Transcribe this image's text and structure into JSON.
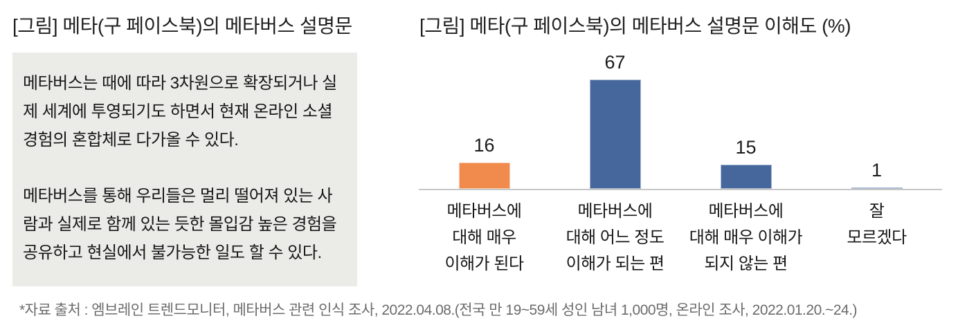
{
  "left_panel": {
    "title": "[그림] 메타(구 페이스북)의 메타버스 설명문",
    "description_paragraphs": [
      "메타버스는 때에 따라 3차원으로 확장되거나 실제 세계에 투영되기도 하면서 현재 온라인 소셜 경험의 혼합체로 다가올 수 있다.",
      "메타버스를 통해 우리들은 멀리 떨어져 있는 사람과 실제로 함께 있는 듯한 몰입감 높은 경험을 공유하고 현실에서 불가능한 일도 할 수 있다."
    ],
    "box_background": "#EBEBE8"
  },
  "chart_data": {
    "type": "bar",
    "title": "[그림] 메타(구 페이스북)의 메타버스 설명문 이해도 (%)",
    "categories": [
      "메타버스에 대해 매우 이해가 된다",
      "메타버스에 대해 어느 정도 이해가 되는 편",
      "메타버스에 대해 매우 이해가 되지 않는 편",
      "잘 모르겠다"
    ],
    "category_lines": [
      [
        "메타버스에",
        "대해 매우",
        "이해가 된다"
      ],
      [
        "메타버스에",
        "대해 어느 정도",
        "이해가 되는 편"
      ],
      [
        "메타버스에",
        "대해 매우 이해가",
        "되지 않는 편"
      ],
      [
        "잘",
        "모르겠다"
      ]
    ],
    "values": [
      16,
      67,
      15,
      1
    ],
    "data_labels": [
      "16",
      "67",
      "15",
      "1"
    ],
    "unit": "%",
    "bar_colors": [
      "#F08A4D",
      "#45679C",
      "#45679C",
      "#45679C"
    ],
    "xlabel": "",
    "ylabel": "",
    "ylim": [
      0,
      80
    ],
    "grid": false,
    "legend": false,
    "axis_line_color": "#C7C7C7"
  },
  "footer": {
    "source": "*자료 출처 : 엠브레인 트렌드모니터, 메타버스 관련 인식 조사, 2022.04.08.(전국 만 19~59세 성인 남녀 1,000명, 온라인 조사, 2022.01.20.~24.)"
  }
}
